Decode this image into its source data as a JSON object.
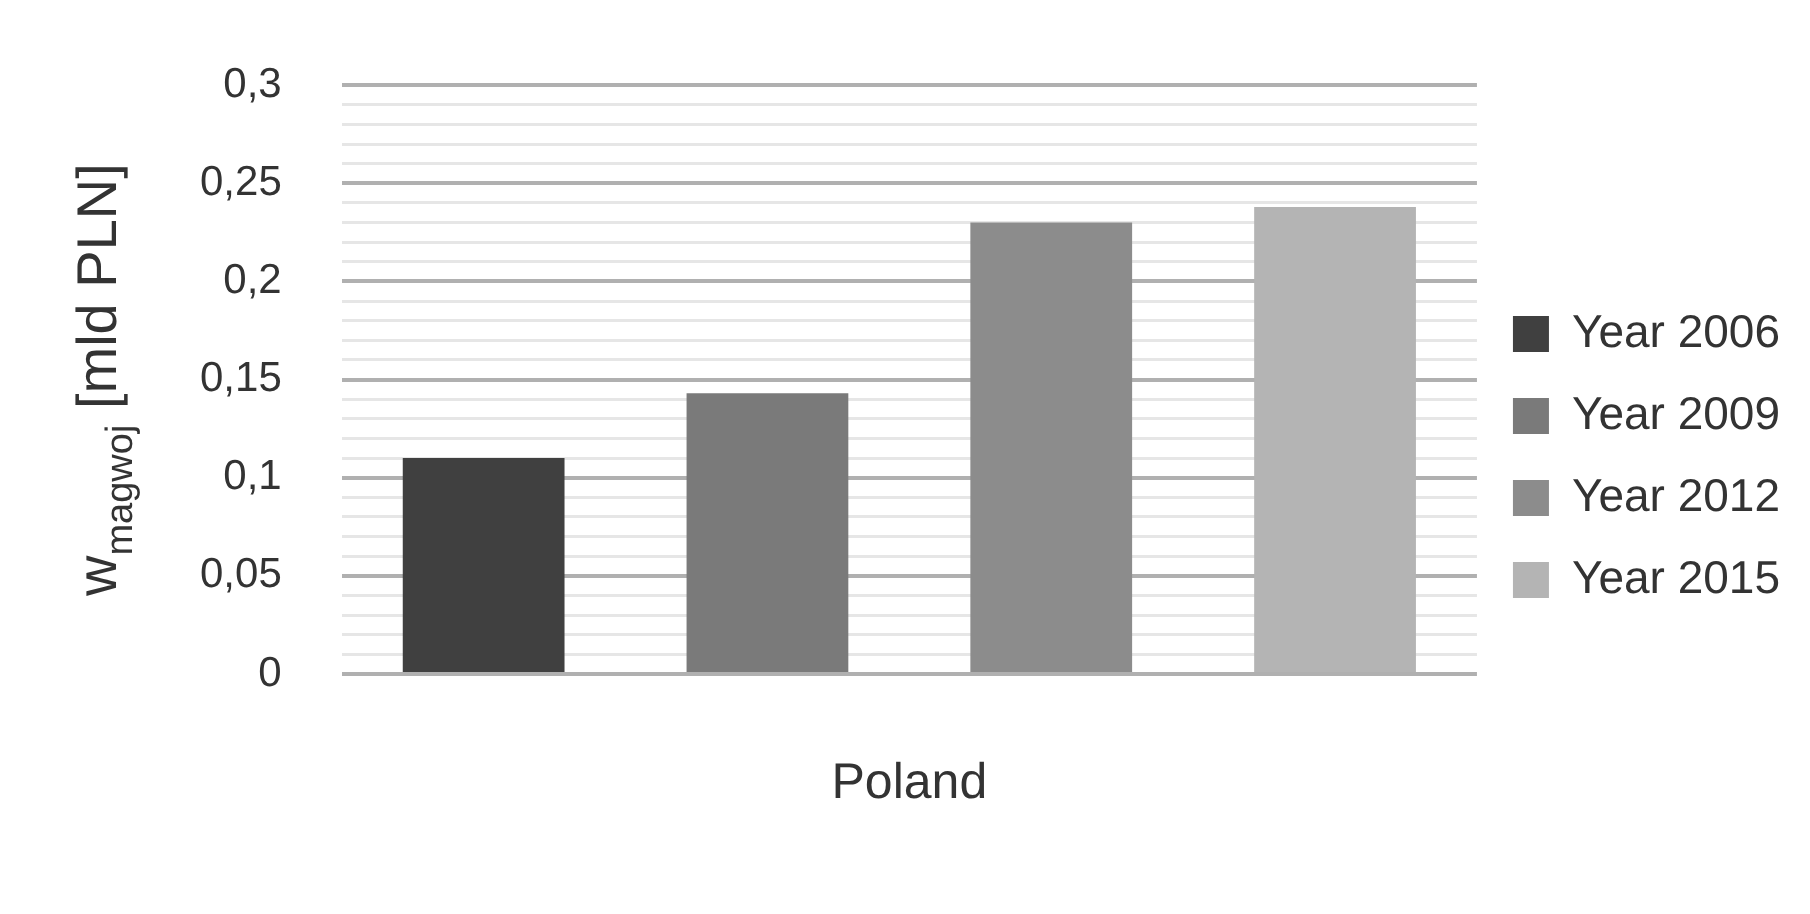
{
  "chart_data": {
    "type": "bar",
    "ylabel": "w$_{magwoj}$ [mld PLN]",
    "categories": [
      "Poland"
    ],
    "series": [
      {
        "name": "Year 2006",
        "color": "#404040",
        "values": [
          0.11
        ]
      },
      {
        "name": "Year 2009",
        "color": "#7a7a7a",
        "values": [
          0.143
        ]
      },
      {
        "name": "Year 2012",
        "color": "#8c8c8c",
        "values": [
          0.23
        ]
      },
      {
        "name": "Year 2015",
        "color": "#b4b4b4",
        "values": [
          0.238
        ]
      }
    ],
    "ylim": [
      0,
      0.3
    ],
    "yticks": [
      0,
      {
        "value": 0.01,
        "label": null
      },
      {
        "value": 0.02,
        "label": null
      },
      {
        "value": 0.03,
        "label": null
      },
      {
        "value": 0.04,
        "label": null
      },
      {
        "value": 0.05,
        "label": "0,05"
      },
      {
        "value": 0.06,
        "label": null
      },
      {
        "value": 0.07,
        "label": null
      },
      {
        "value": 0.08,
        "label": null
      },
      {
        "value": 0.09,
        "label": null
      },
      {
        "value": 0.1,
        "label": "0,1"
      },
      {
        "value": 0.11,
        "label": null
      },
      {
        "value": 0.12,
        "label": null
      },
      {
        "value": 0.13,
        "label": null
      },
      {
        "value": 0.14,
        "label": null
      },
      {
        "value": 0.15,
        "label": "0,15"
      },
      {
        "value": 0.16,
        "label": null
      },
      {
        "value": 0.17,
        "label": null
      },
      {
        "value": 0.18,
        "label": null
      },
      {
        "value": 0.19,
        "label": null
      },
      {
        "value": 0.2,
        "label": "0,2"
      },
      {
        "value": 0.21,
        "label": null
      },
      {
        "value": 0.22,
        "label": null
      },
      {
        "value": 0.23,
        "label": null
      },
      {
        "value": 0.24,
        "label": null
      },
      {
        "value": 0.25,
        "label": "0,25"
      },
      {
        "value": 0.26,
        "label": null
      },
      {
        "value": 0.27,
        "label": null
      },
      {
        "value": 0.28,
        "label": null
      },
      {
        "value": 0.29,
        "label": null
      },
      {
        "value": 0.3,
        "label": "0,3"
      }
    ],
    "grid": "y",
    "legend": "right"
  }
}
